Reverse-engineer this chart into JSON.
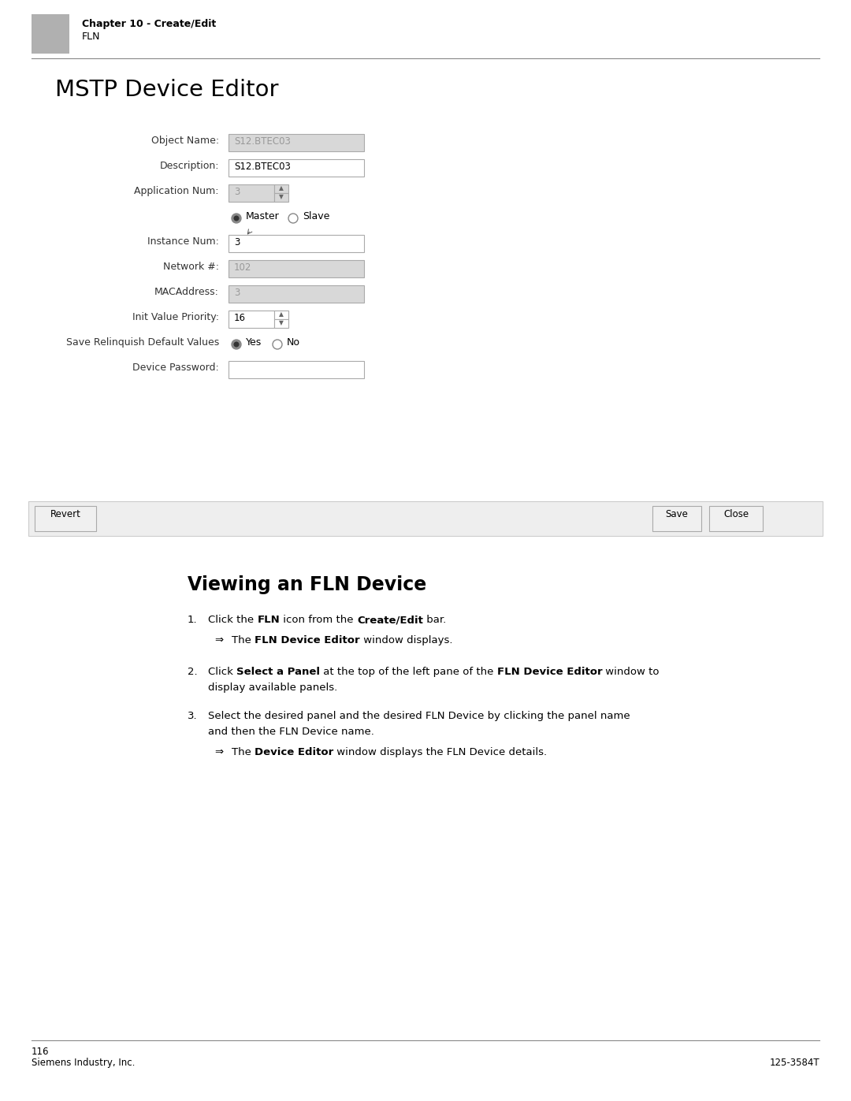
{
  "bg_color": "#ffffff",
  "header_rect_color": "#b0b0b0",
  "chapter_title": "Chapter 10 - Create/Edit",
  "chapter_sub": "FLN",
  "page_title": "MSTP Device Editor",
  "section_title": "Viewing an FLN Device",
  "footer_page_number": "116",
  "footer_left": "Siemens Industry, Inc.",
  "footer_right": "125-3584T",
  "field_box_color": "#ffffff",
  "disabled_box_color": "#d8d8d8",
  "field_border_color": "#aaaaaa",
  "label_color": "#333333",
  "disabled_text_color": "#999999",
  "radio_filled_color": "#555555",
  "btn_bg": "#f0f0f0",
  "btn_border": "#aaaaaa",
  "bar_bg": "#eeeeee",
  "bar_border": "#cccccc"
}
